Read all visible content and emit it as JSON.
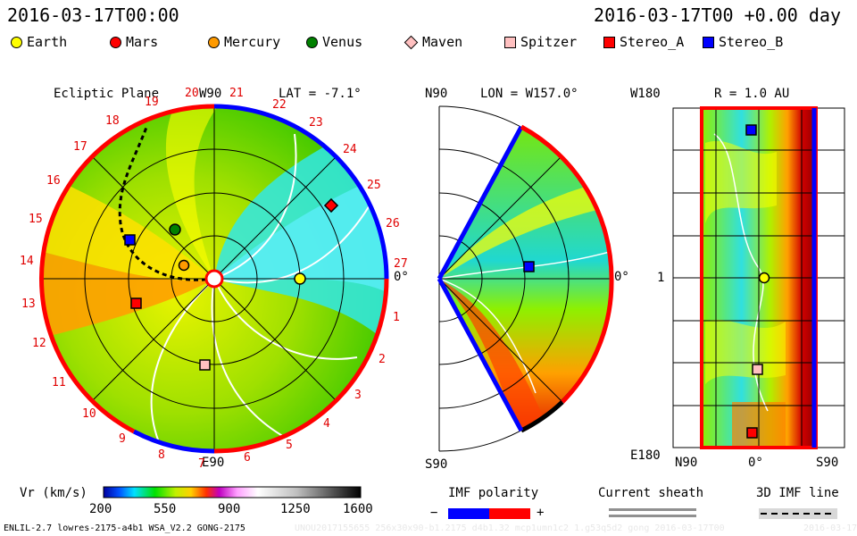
{
  "header": {
    "left_time": "2016-03-17T00:00",
    "right_time": "2016-03-17T00 +0.00 day"
  },
  "legend": [
    {
      "label": "Earth",
      "color": "#ffff00",
      "shape": "circle"
    },
    {
      "label": "Mars",
      "color": "#ff0000",
      "shape": "circle"
    },
    {
      "label": "Mercury",
      "color": "#ff9a00",
      "shape": "circle"
    },
    {
      "label": "Venus",
      "color": "#008000",
      "shape": "circle"
    },
    {
      "label": "Maven",
      "color": "#ffc0c0",
      "shape": "diamond"
    },
    {
      "label": "Spitzer",
      "color": "#ffc0c0",
      "shape": "square"
    },
    {
      "label": "Stereo_A",
      "color": "#ff0000",
      "shape": "square"
    },
    {
      "label": "Stereo_B",
      "color": "#0000ff",
      "shape": "square"
    }
  ],
  "panels": {
    "ecliptic": {
      "title": "Ecliptic Plane",
      "top_label": "W90",
      "lat_label": "LAT = -7.1°",
      "bottom_label": "E90",
      "right_label": "0°",
      "carrington": [
        "20",
        "21",
        "22",
        "23",
        "24",
        "25",
        "26",
        "27",
        "1",
        "2",
        "3",
        "4",
        "5",
        "6",
        "7",
        "8",
        "9",
        "10",
        "11",
        "12",
        "13",
        "14",
        "15",
        "16",
        "17",
        "18",
        "19"
      ]
    },
    "meridional": {
      "lon_label": "LON = W157.0°",
      "top_label": "N90",
      "bottom_label": "S90",
      "right_label": "0°"
    },
    "sphere": {
      "r_label": "R = 1.0 AU",
      "top_label": "W180",
      "mid_label": "1",
      "bottom_label": "E180",
      "x_left": "N90",
      "x_mid": "0°",
      "x_right": "S90"
    }
  },
  "colorbar": {
    "label": "Vr (km/s)",
    "ticks": [
      "200",
      "550",
      "900",
      "1250",
      "1600"
    ]
  },
  "imf": {
    "label": "IMF polarity",
    "minus": "−",
    "plus": "+"
  },
  "sheath": {
    "label": "Current sheath"
  },
  "imf3d": {
    "label": "3D IMF line"
  },
  "footer": {
    "left": "ENLIL-2.7 lowres-2175-a4b1 WSA_V2.2 GONG-2175",
    "right": "UNOU2017155655 256x30x90-b1.2175 d4b1.32 mcp1umn1c2 1.g53q5d2 gong 2016-03-17T00",
    "far_right": "2016-03-17"
  }
}
